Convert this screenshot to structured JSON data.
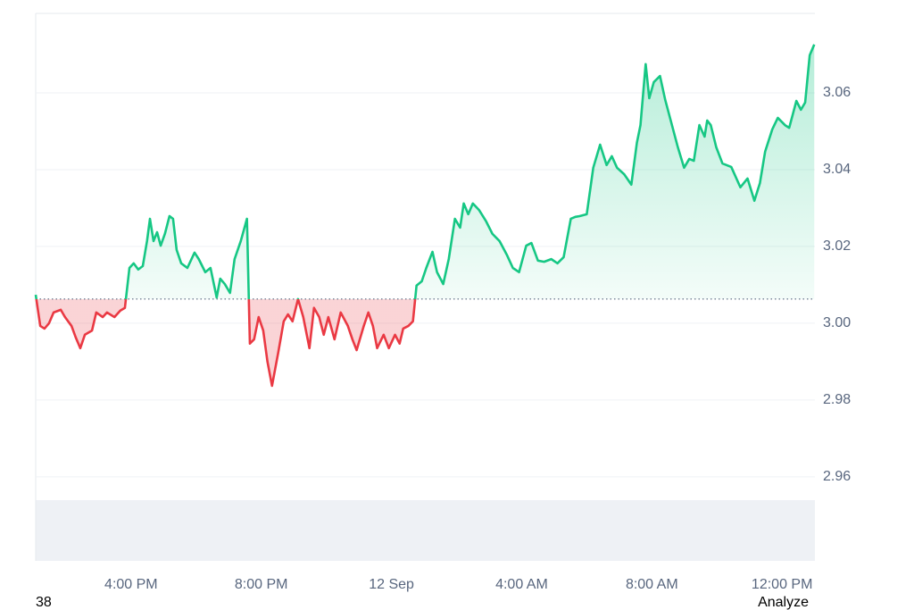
{
  "chart_data": {
    "type": "line",
    "x": [
      13.07,
      13.21,
      13.34,
      13.48,
      13.62,
      13.84,
      13.97,
      14.17,
      14.3,
      14.44,
      14.58,
      14.8,
      14.93,
      15.13,
      15.26,
      15.49,
      15.67,
      15.81,
      15.95,
      16.08,
      16.22,
      16.36,
      16.49,
      16.58,
      16.69,
      16.8,
      16.91,
      17.04,
      17.18,
      17.29,
      17.4,
      17.54,
      17.73,
      17.95,
      18.08,
      18.28,
      18.44,
      18.63,
      18.74,
      18.88,
      19.04,
      19.18,
      19.37,
      19.56,
      19.65,
      19.78,
      19.92,
      20.06,
      20.19,
      20.33,
      20.52,
      20.69,
      20.82,
      20.96,
      21.13,
      21.29,
      21.48,
      21.62,
      21.78,
      21.92,
      22.06,
      22.25,
      22.44,
      22.66,
      22.8,
      22.93,
      23.15,
      23.29,
      23.43,
      23.56,
      23.76,
      23.92,
      24.11,
      24.25,
      24.36,
      24.52,
      24.66,
      24.77,
      24.93,
      25.07,
      25.26,
      25.4,
      25.59,
      25.76,
      25.95,
      26.11,
      26.22,
      26.36,
      26.5,
      26.69,
      26.91,
      27.1,
      27.32,
      27.54,
      27.73,
      27.92,
      28.14,
      28.3,
      28.5,
      28.69,
      28.91,
      29.1,
      29.29,
      29.51,
      29.65,
      29.78,
      30.0,
      30.2,
      30.41,
      30.61,
      30.77,
      30.93,
      31.15,
      31.37,
      31.54,
      31.65,
      31.81,
      31.92,
      32.06,
      32.25,
      32.41,
      32.58,
      32.8,
      32.99,
      33.15,
      33.29,
      33.46,
      33.62,
      33.7,
      33.81,
      33.98,
      34.17,
      34.44,
      34.72,
      34.94,
      35.15,
      35.32,
      35.48,
      35.7,
      35.87,
      36.09,
      36.22,
      36.44,
      36.58,
      36.71,
      36.85,
      36.99
    ],
    "values": [
      3.0074,
      2.9993,
      2.9986,
      3.0,
      3.0028,
      3.0035,
      3.0016,
      2.9993,
      2.9963,
      2.9935,
      2.997,
      2.9981,
      3.0028,
      3.0016,
      3.0028,
      3.0016,
      3.0033,
      3.004,
      3.0144,
      3.0156,
      3.014,
      3.0149,
      3.0214,
      3.0272,
      3.0214,
      3.0237,
      3.0202,
      3.0233,
      3.0279,
      3.0272,
      3.0191,
      3.0156,
      3.0144,
      3.0184,
      3.0167,
      3.0133,
      3.0144,
      3.0067,
      3.0116,
      3.0102,
      3.0079,
      3.0167,
      3.0214,
      3.0272,
      2.9947,
      2.9958,
      3.0016,
      2.9981,
      2.99,
      2.9837,
      2.9923,
      3.0005,
      3.0023,
      3.0005,
      3.0063,
      3.0016,
      2.9935,
      3.004,
      3.0016,
      2.997,
      3.0016,
      2.9958,
      3.0028,
      2.9993,
      2.9958,
      2.993,
      2.9993,
      3.0028,
      2.9993,
      2.9935,
      2.997,
      2.9935,
      2.997,
      2.9947,
      2.9986,
      2.9993,
      3.0005,
      3.0098,
      3.0109,
      3.0144,
      3.0186,
      3.0133,
      3.0102,
      3.0167,
      3.0272,
      3.0249,
      3.0312,
      3.0284,
      3.0312,
      3.0295,
      3.0265,
      3.0233,
      3.0214,
      3.0179,
      3.0144,
      3.0133,
      3.0202,
      3.0209,
      3.0163,
      3.016,
      3.0167,
      3.0156,
      3.0172,
      3.0272,
      3.0277,
      3.0279,
      3.0284,
      3.0405,
      3.0465,
      3.0412,
      3.0435,
      3.0405,
      3.0388,
      3.0361,
      3.047,
      3.0516,
      3.0675,
      3.0586,
      3.0628,
      3.0644,
      3.0582,
      3.0528,
      3.0458,
      3.0405,
      3.0428,
      3.0423,
      3.0516,
      3.0486,
      3.0528,
      3.0516,
      3.0458,
      3.0416,
      3.0407,
      3.0354,
      3.0377,
      3.0319,
      3.0365,
      3.0447,
      3.0505,
      3.0535,
      3.0516,
      3.0509,
      3.0579,
      3.0556,
      3.0575,
      3.0698,
      3.0726
    ],
    "baseline": 3.0063,
    "up_color": "#16c784",
    "down_color": "#ea3943",
    "xlim": [
      13.07,
      37.01
    ],
    "xticks": [
      {
        "value": 16,
        "label": "4:00 PM"
      },
      {
        "value": 20,
        "label": "8:00 PM"
      },
      {
        "value": 24,
        "label": "12 Sep"
      },
      {
        "value": 28,
        "label": "4:00 AM"
      },
      {
        "value": 32,
        "label": "8:00 AM"
      },
      {
        "value": 36,
        "label": "12:00 PM"
      }
    ],
    "ylim": [
      2.9381,
      3.0807
    ],
    "yticks": [
      {
        "value": 2.96,
        "label": "2.96"
      },
      {
        "value": 2.98,
        "label": "2.98"
      },
      {
        "value": 3.0,
        "label": "3.00"
      },
      {
        "value": 3.02,
        "label": "3.02"
      },
      {
        "value": 3.04,
        "label": "3.04"
      },
      {
        "value": 3.06,
        "label": "3.06"
      }
    ],
    "grid": true
  },
  "footer_left": "38",
  "footer_right": "Analyze"
}
